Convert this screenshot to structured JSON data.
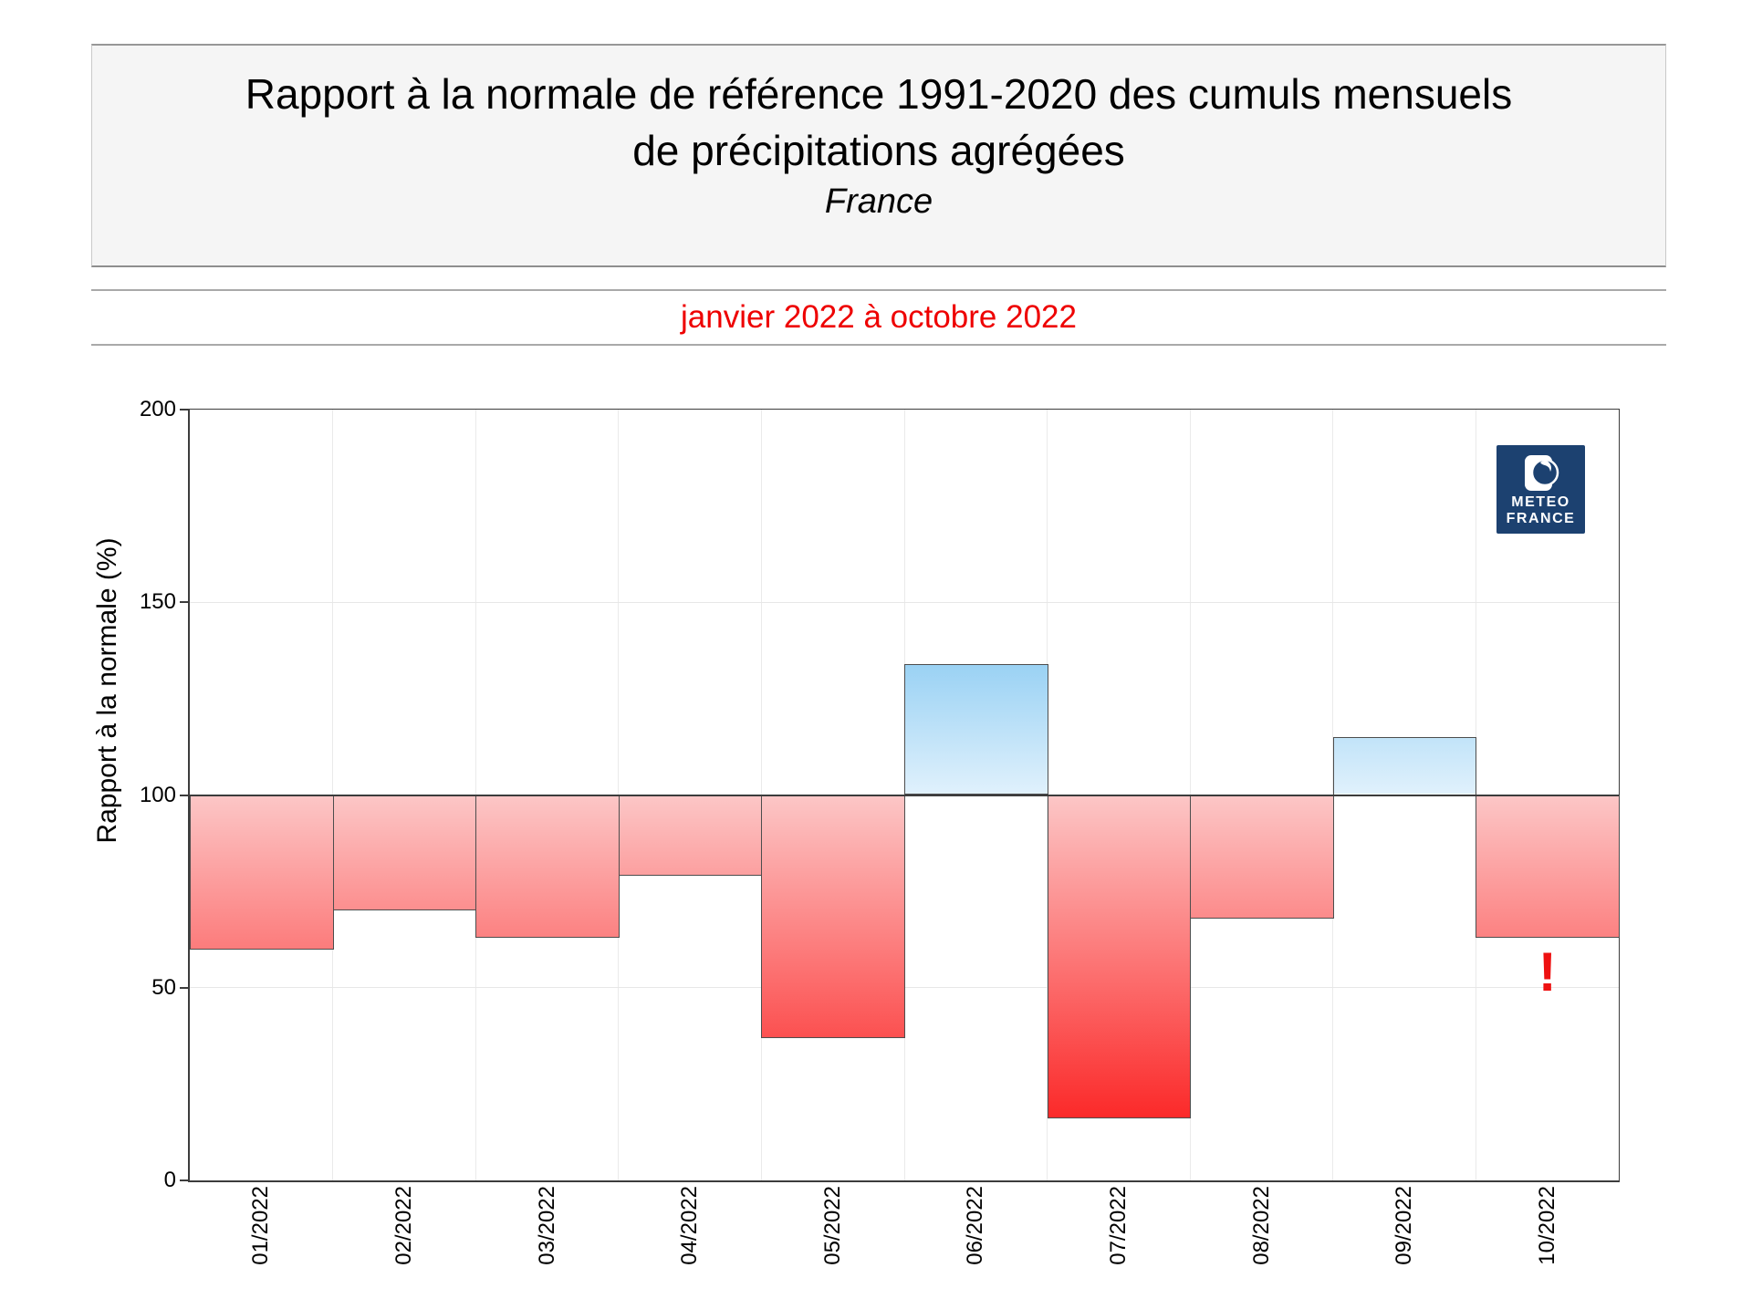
{
  "header": {
    "title_line1": "Rapport à la normale de référence 1991-2020 des cumuls mensuels",
    "title_line2": "de précipitations agrégées",
    "region": "France"
  },
  "subtitle": {
    "period": "janvier 2022 à octobre 2022"
  },
  "logo": {
    "line1": "METEO",
    "line2": "FRANCE"
  },
  "chart_data": {
    "type": "bar",
    "title": "Rapport à la normale de référence 1991-2020 des cumuls mensuels de précipitations agrégées",
    "region": "France",
    "period": "janvier 2022 à octobre 2022",
    "ylabel": "Rapport à la normale (%)",
    "xlabel": "",
    "categories": [
      "01/2022",
      "02/2022",
      "03/2022",
      "04/2022",
      "05/2022",
      "06/2022",
      "07/2022",
      "08/2022",
      "09/2022",
      "10/2022"
    ],
    "values": [
      60,
      70,
      63,
      79,
      37,
      134,
      16,
      68,
      115,
      63
    ],
    "baseline": 100,
    "ylim": [
      0,
      200
    ],
    "yticks": [
      0,
      50,
      100,
      150,
      200
    ],
    "grid": true,
    "legend": "none",
    "annotation": {
      "text": "!",
      "category": "10/2022",
      "category_index": 9,
      "y_value": 54
    },
    "colors": {
      "deficit_gradient_top": "#fcc6c6",
      "deficit_gradient_bottom": "#fb0a0a",
      "excess_gradient_bottom": "#e0f1fc",
      "excess_gradient_top": "#1094e4",
      "annotation": "#ee1111",
      "logo_navy": "#1c4170",
      "period_red": "#ee0000"
    }
  }
}
